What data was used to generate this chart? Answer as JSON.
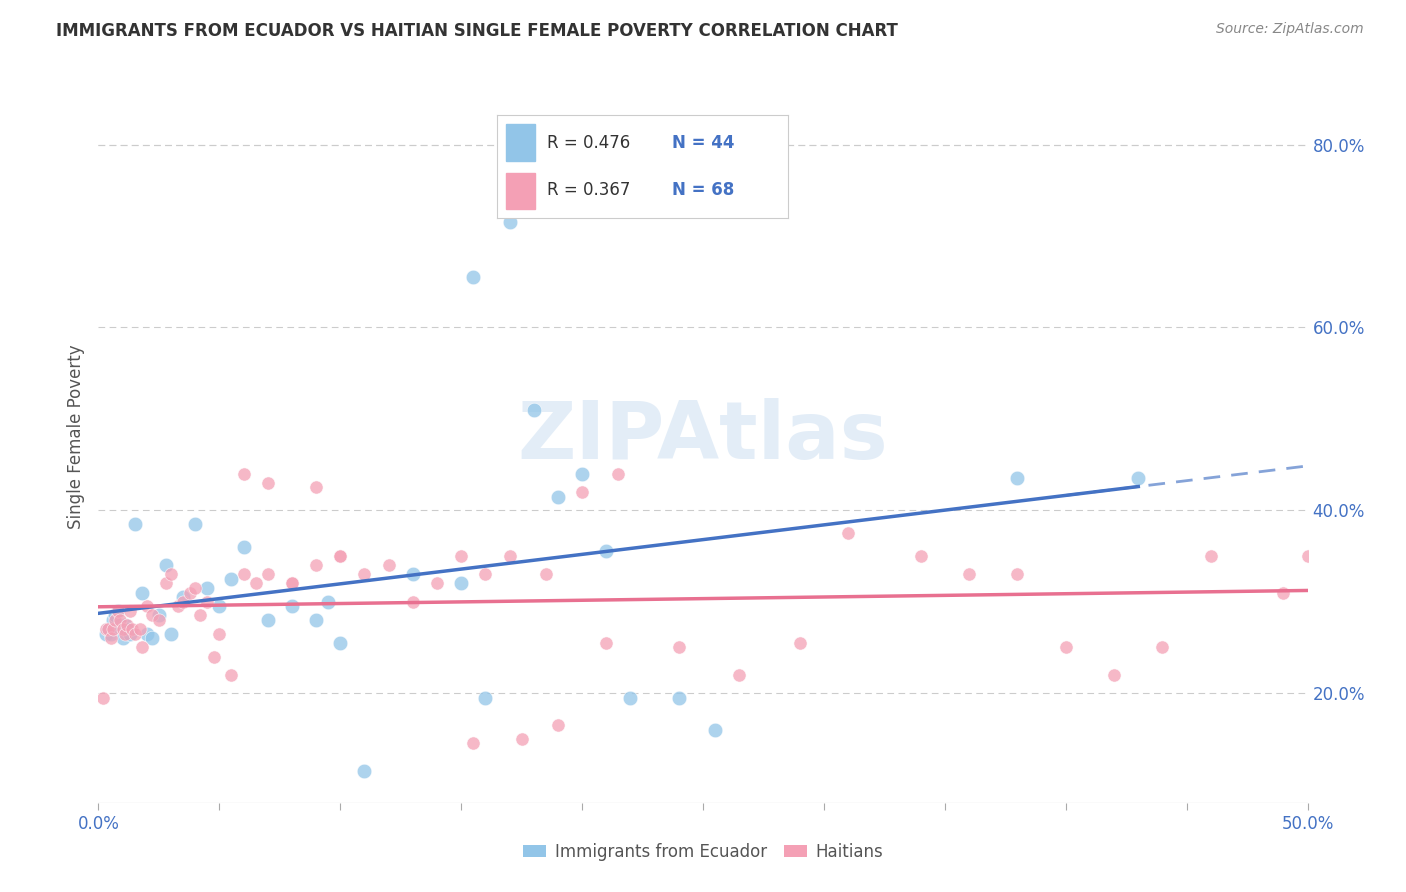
{
  "title": "IMMIGRANTS FROM ECUADOR VS HAITIAN SINGLE FEMALE POVERTY CORRELATION CHART",
  "source": "Source: ZipAtlas.com",
  "ylabel": "Single Female Poverty",
  "xlim": [
    0.0,
    0.5
  ],
  "ylim": [
    0.08,
    0.88
  ],
  "yticks_right": [
    0.2,
    0.4,
    0.6,
    0.8
  ],
  "background_color": "#ffffff",
  "watermark": "ZIPAtlas",
  "legend_R1": "R = 0.476",
  "legend_N1": "N = 44",
  "legend_R2": "R = 0.367",
  "legend_N2": "N = 68",
  "color_ecuador": "#92C5E8",
  "color_haitian": "#F4A0B5",
  "color_blue_line": "#4472C4",
  "color_pink_line": "#E87090",
  "color_tick_label": "#4472C4",
  "ecuador_x": [
    0.003,
    0.004,
    0.005,
    0.006,
    0.007,
    0.008,
    0.009,
    0.01,
    0.011,
    0.012,
    0.013,
    0.015,
    0.018,
    0.02,
    0.022,
    0.025,
    0.028,
    0.03,
    0.035,
    0.04,
    0.045,
    0.05,
    0.055,
    0.06,
    0.07,
    0.08,
    0.09,
    0.095,
    0.1,
    0.11,
    0.13,
    0.155,
    0.17,
    0.21,
    0.22,
    0.24,
    0.255,
    0.38,
    0.43,
    0.18,
    0.19,
    0.2,
    0.15,
    0.16
  ],
  "ecuador_y": [
    0.265,
    0.27,
    0.265,
    0.28,
    0.285,
    0.29,
    0.275,
    0.26,
    0.275,
    0.27,
    0.265,
    0.385,
    0.31,
    0.265,
    0.26,
    0.285,
    0.34,
    0.265,
    0.305,
    0.385,
    0.315,
    0.295,
    0.325,
    0.36,
    0.28,
    0.295,
    0.28,
    0.3,
    0.255,
    0.115,
    0.33,
    0.655,
    0.715,
    0.355,
    0.195,
    0.195,
    0.16,
    0.435,
    0.435,
    0.51,
    0.415,
    0.44,
    0.32,
    0.195
  ],
  "haitian_x": [
    0.002,
    0.003,
    0.004,
    0.005,
    0.006,
    0.007,
    0.008,
    0.009,
    0.01,
    0.011,
    0.012,
    0.013,
    0.014,
    0.015,
    0.017,
    0.018,
    0.02,
    0.022,
    0.025,
    0.028,
    0.03,
    0.033,
    0.035,
    0.038,
    0.04,
    0.042,
    0.045,
    0.048,
    0.05,
    0.055,
    0.06,
    0.065,
    0.07,
    0.08,
    0.09,
    0.1,
    0.11,
    0.12,
    0.13,
    0.14,
    0.15,
    0.16,
    0.17,
    0.185,
    0.2,
    0.215,
    0.24,
    0.265,
    0.29,
    0.31,
    0.34,
    0.36,
    0.38,
    0.4,
    0.42,
    0.44,
    0.46,
    0.49,
    0.5,
    0.155,
    0.175,
    0.19,
    0.21,
    0.06,
    0.07,
    0.08,
    0.09,
    0.1
  ],
  "haitian_y": [
    0.195,
    0.27,
    0.27,
    0.26,
    0.27,
    0.28,
    0.29,
    0.28,
    0.27,
    0.265,
    0.275,
    0.29,
    0.27,
    0.265,
    0.27,
    0.25,
    0.295,
    0.285,
    0.28,
    0.32,
    0.33,
    0.295,
    0.3,
    0.31,
    0.315,
    0.285,
    0.3,
    0.24,
    0.265,
    0.22,
    0.33,
    0.32,
    0.33,
    0.32,
    0.34,
    0.35,
    0.33,
    0.34,
    0.3,
    0.32,
    0.35,
    0.33,
    0.35,
    0.33,
    0.42,
    0.44,
    0.25,
    0.22,
    0.255,
    0.375,
    0.35,
    0.33,
    0.33,
    0.25,
    0.22,
    0.25,
    0.35,
    0.31,
    0.35,
    0.145,
    0.15,
    0.165,
    0.255,
    0.44,
    0.43,
    0.32,
    0.425,
    0.35
  ]
}
